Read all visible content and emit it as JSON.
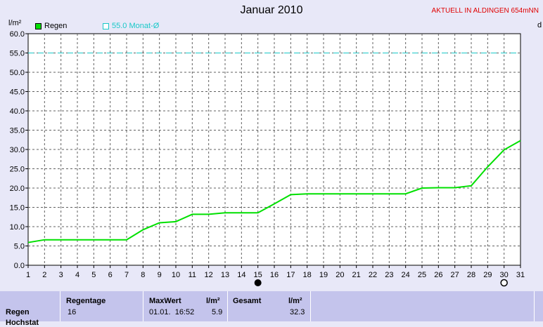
{
  "header": {
    "title": "Januar 2010",
    "station": "AKTUELL IN ALDINGEN 654mNN",
    "right_cut_label": "d"
  },
  "legend": {
    "series_label": "Regen",
    "reference_label": "55.0 Monat-Ø"
  },
  "colors": {
    "series": "#00e000",
    "reference": "#19c8c8",
    "station": "#e00000",
    "background": "#e8e8f8",
    "plot": "#ffffff",
    "stats_bar": "#c4c4ec"
  },
  "chart_data": {
    "type": "line",
    "ylabel": "l/m²",
    "ylim": [
      0,
      60
    ],
    "yticks": [
      0,
      5,
      10,
      15,
      20,
      25,
      30,
      35,
      40,
      45,
      50,
      55,
      60
    ],
    "xlim": [
      1,
      31
    ],
    "xticks": [
      1,
      2,
      3,
      4,
      5,
      6,
      7,
      8,
      9,
      10,
      11,
      12,
      13,
      14,
      15,
      16,
      17,
      18,
      19,
      20,
      21,
      22,
      23,
      24,
      25,
      26,
      27,
      28,
      29,
      30,
      31
    ],
    "grid": true,
    "series": [
      {
        "name": "Regen",
        "x": [
          1,
          2,
          3,
          4,
          5,
          6,
          7,
          8,
          9,
          10,
          11,
          12,
          13,
          14,
          15,
          16,
          17,
          18,
          19,
          20,
          21,
          22,
          23,
          24,
          25,
          26,
          27,
          28,
          29,
          30,
          31
        ],
        "y": [
          5.9,
          6.6,
          6.6,
          6.6,
          6.6,
          6.6,
          6.6,
          9.2,
          11.0,
          11.3,
          13.2,
          13.2,
          13.6,
          13.6,
          13.6,
          15.9,
          18.3,
          18.5,
          18.5,
          18.5,
          18.5,
          18.5,
          18.5,
          18.5,
          20.0,
          20.1,
          20.1,
          20.6,
          25.5,
          29.9,
          32.3
        ]
      }
    ],
    "reference_line": {
      "name": "55.0 Monat-Ø",
      "value": 55.0
    },
    "moon_markers": [
      {
        "day": 15,
        "phase": "new"
      },
      {
        "day": 30,
        "phase": "full"
      }
    ]
  },
  "stats": {
    "row_label": "Regen",
    "row_label_2": "Hochstat",
    "regentage_label": "Regentage",
    "regentage_value": "16",
    "maxwert_label": "MaxWert",
    "maxwert_unit": "l/m²",
    "maxwert_date": "01.01.  16:52",
    "maxwert_value": "5.9",
    "gesamt_label": "Gesamt",
    "gesamt_unit": "l/m²",
    "gesamt_value": "32.3"
  }
}
